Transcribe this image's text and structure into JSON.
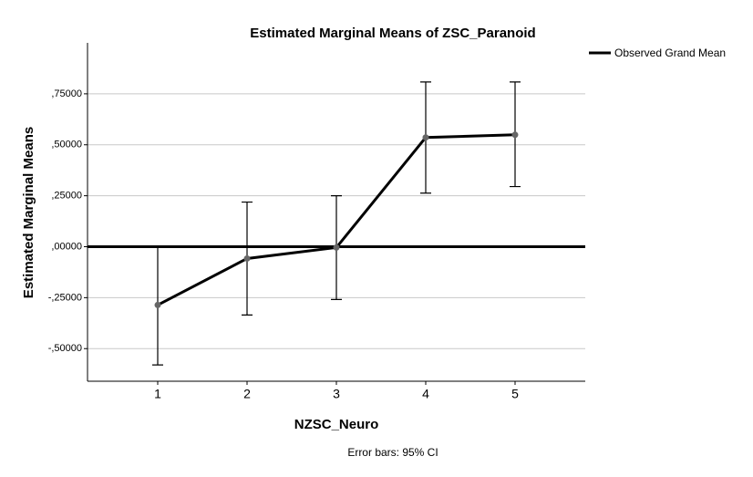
{
  "chart_data": {
    "type": "line",
    "title": "Estimated Marginal Means of ZSC_Paranoid",
    "x_label": "NZSC_Neuro",
    "y_label": "Estimated Marginal Means",
    "footnote": "Error bars: 95% CI",
    "categories": [
      "1",
      "2",
      "3",
      "4",
      "5"
    ],
    "series": [
      {
        "color": "#000000",
        "values": [
          -0.286,
          -0.058,
          -0.004,
          0.536,
          0.549
        ],
        "lower": [
          -0.58,
          -0.335,
          -0.259,
          0.263,
          0.295
        ],
        "upper": [
          0.0,
          0.219,
          0.25,
          0.808,
          0.808
        ]
      }
    ],
    "reference_line": {
      "name": "Observed Grand Mean",
      "value": 0,
      "color": "#000000"
    },
    "ylim": [
      -0.66,
      1.0
    ],
    "yticks": [
      {
        "value": -0.5,
        "label": "-,50000"
      },
      {
        "value": -0.25,
        "label": "-,25000"
      },
      {
        "value": 0,
        "label": ",00000"
      },
      {
        "value": 0.25,
        "label": ",25000"
      },
      {
        "value": 0.5,
        "label": ",50000"
      },
      {
        "value": 0.75,
        "label": ",75000"
      }
    ],
    "grid": true,
    "legend": "top-right"
  }
}
